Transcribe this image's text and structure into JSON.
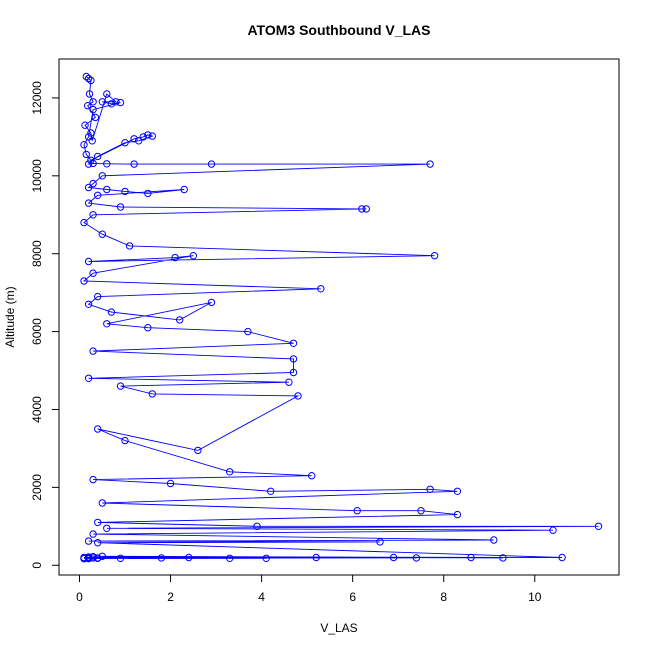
{
  "chart_data": {
    "type": "scatter",
    "title": "ATOM3 Southbound V_LAS",
    "xlabel": "V_LAS",
    "ylabel": "Altitude (m)",
    "xlim": [
      -0.45,
      11.85
    ],
    "ylim": [
      -250,
      13000
    ],
    "x_ticks": [
      0,
      2,
      4,
      6,
      8,
      10
    ],
    "y_ticks": [
      0,
      2000,
      4000,
      6000,
      8000,
      10000,
      12000
    ],
    "x_tick_labels": [
      "0",
      "2",
      "4",
      "6",
      "8",
      "10"
    ],
    "y_tick_labels": [
      "0",
      "2000",
      "4000",
      "6000",
      "8000",
      "10000",
      "12000"
    ],
    "color": "#0000FF",
    "markers": "open-circle-with-lines",
    "series": [
      {
        "x": [
          0.15,
          0.2,
          0.25,
          0.22,
          0.3,
          0.18,
          0.35,
          0.12,
          0.25,
          0.28,
          0.6,
          0.8,
          0.5,
          0.7,
          0.9,
          0.3,
          0.2,
          0.1,
          0.15,
          0.25,
          1.2,
          1.4,
          1.5,
          1.6,
          1.3,
          1.0,
          0.4,
          0.2,
          0.3,
          0.6,
          1.2,
          2.9,
          7.7,
          0.5,
          0.3,
          0.2,
          0.6,
          1.0,
          1.5,
          2.3,
          0.4,
          0.2,
          0.9,
          6.2,
          6.3,
          0.3,
          0.1,
          0.5,
          1.1,
          7.8,
          0.2,
          2.1,
          2.5,
          0.3,
          0.1,
          5.3,
          0.4,
          0.2,
          0.7,
          2.2,
          2.9,
          0.6,
          1.5,
          3.7,
          4.7,
          0.3,
          4.7,
          4.7,
          0.2,
          4.6,
          0.9,
          1.6,
          4.8,
          2.6,
          0.4,
          1.0,
          3.3,
          5.1,
          0.3,
          2.0,
          4.2,
          7.7,
          8.3,
          0.5,
          6.1,
          7.5,
          8.3,
          0.4,
          3.9,
          11.4,
          0.6,
          10.4,
          0.3,
          9.1,
          0.2,
          6.6,
          0.4,
          10.6,
          0.3,
          9.3,
          0.5,
          8.6,
          0.2,
          7.4,
          0.4,
          5.2,
          0.2,
          3.3,
          0.1,
          1.8,
          0.2,
          2.4,
          0.3,
          4.1,
          0.1,
          6.9,
          0.2,
          0.9,
          0.1,
          0.4
        ],
        "y": [
          12550,
          12500,
          12450,
          12100,
          11900,
          11800,
          11500,
          11300,
          11100,
          10900,
          12100,
          11900,
          11900,
          11850,
          11880,
          11700,
          11000,
          10800,
          10550,
          10400,
          10950,
          11000,
          11050,
          11020,
          10900,
          10850,
          10500,
          10300,
          10320,
          10310,
          10300,
          10300,
          10300,
          10000,
          9800,
          9700,
          9650,
          9600,
          9550,
          9650,
          9500,
          9300,
          9200,
          9150,
          9150,
          9000,
          8800,
          8500,
          8200,
          7950,
          7800,
          7900,
          7950,
          7500,
          7300,
          7100,
          6900,
          6700,
          6500,
          6300,
          6750,
          6200,
          6100,
          6000,
          5700,
          5500,
          5300,
          4950,
          4800,
          4700,
          4600,
          4400,
          4350,
          2950,
          3500,
          3200,
          2400,
          2300,
          2200,
          2100,
          1900,
          1950,
          1900,
          1600,
          1400,
          1400,
          1300,
          1100,
          1000,
          1000,
          950,
          900,
          800,
          650,
          620,
          600,
          580,
          200,
          220,
          190,
          230,
          200,
          210,
          190,
          180,
          200,
          170,
          180,
          200,
          190,
          210,
          200,
          190,
          180,
          170,
          200,
          190,
          180,
          170,
          190
        ]
      }
    ]
  }
}
